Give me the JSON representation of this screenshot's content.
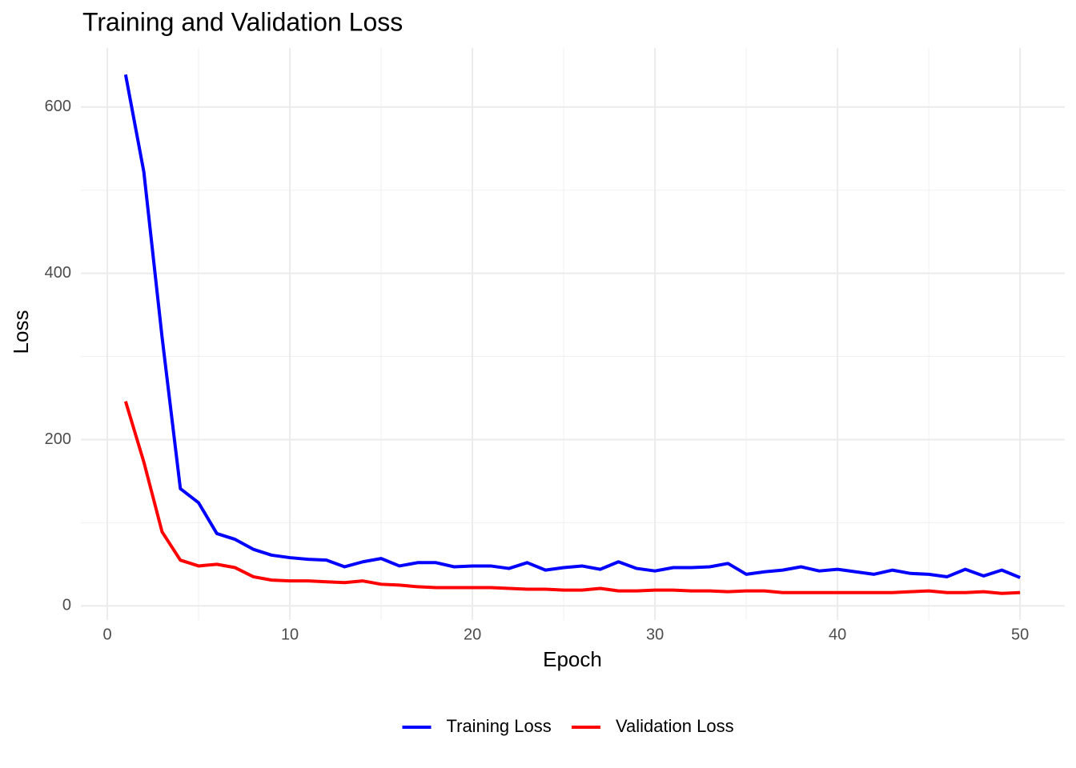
{
  "chart_data": {
    "type": "line",
    "title": "Training and Validation Loss",
    "x_label": "Epoch",
    "y_label": "Loss",
    "x": [
      1,
      2,
      3,
      4,
      5,
      6,
      7,
      8,
      9,
      10,
      11,
      12,
      13,
      14,
      15,
      16,
      17,
      18,
      19,
      20,
      21,
      22,
      23,
      24,
      25,
      26,
      27,
      28,
      29,
      30,
      31,
      32,
      33,
      34,
      35,
      36,
      37,
      38,
      39,
      40,
      41,
      42,
      43,
      44,
      45,
      46,
      47,
      48,
      49,
      50
    ],
    "series": [
      {
        "name": "Training Loss",
        "color": "#0000ff",
        "values": [
          639,
          522,
          323,
          141,
          124,
          87,
          80,
          68,
          61,
          58,
          56,
          55,
          47,
          53,
          57,
          48,
          52,
          52,
          47,
          48,
          48,
          45,
          52,
          43,
          46,
          48,
          44,
          53,
          45,
          42,
          46,
          46,
          47,
          51,
          38,
          41,
          43,
          47,
          42,
          44,
          41,
          38,
          43,
          39,
          38,
          35,
          44,
          36,
          43,
          34
        ]
      },
      {
        "name": "Validation Loss",
        "color": "#ff0000",
        "values": [
          246,
          173,
          89,
          55,
          48,
          50,
          46,
          35,
          31,
          30,
          30,
          29,
          28,
          30,
          26,
          25,
          23,
          22,
          22,
          22,
          22,
          21,
          20,
          20,
          19,
          19,
          21,
          18,
          18,
          19,
          19,
          18,
          18,
          17,
          18,
          18,
          16,
          16,
          16,
          16,
          16,
          16,
          16,
          17,
          18,
          16,
          16,
          17,
          15,
          16
        ]
      }
    ],
    "xlim": [
      -1.45,
      52.45
    ],
    "ylim": [
      -17,
      671
    ],
    "xticks": [
      0,
      10,
      20,
      30,
      40,
      50
    ],
    "yticks": [
      0,
      200,
      400,
      600
    ],
    "xminorticks": [
      5,
      15,
      25,
      35,
      45
    ],
    "yminorticks": [
      100,
      300,
      500
    ],
    "grid": true,
    "legend": "bottom"
  }
}
